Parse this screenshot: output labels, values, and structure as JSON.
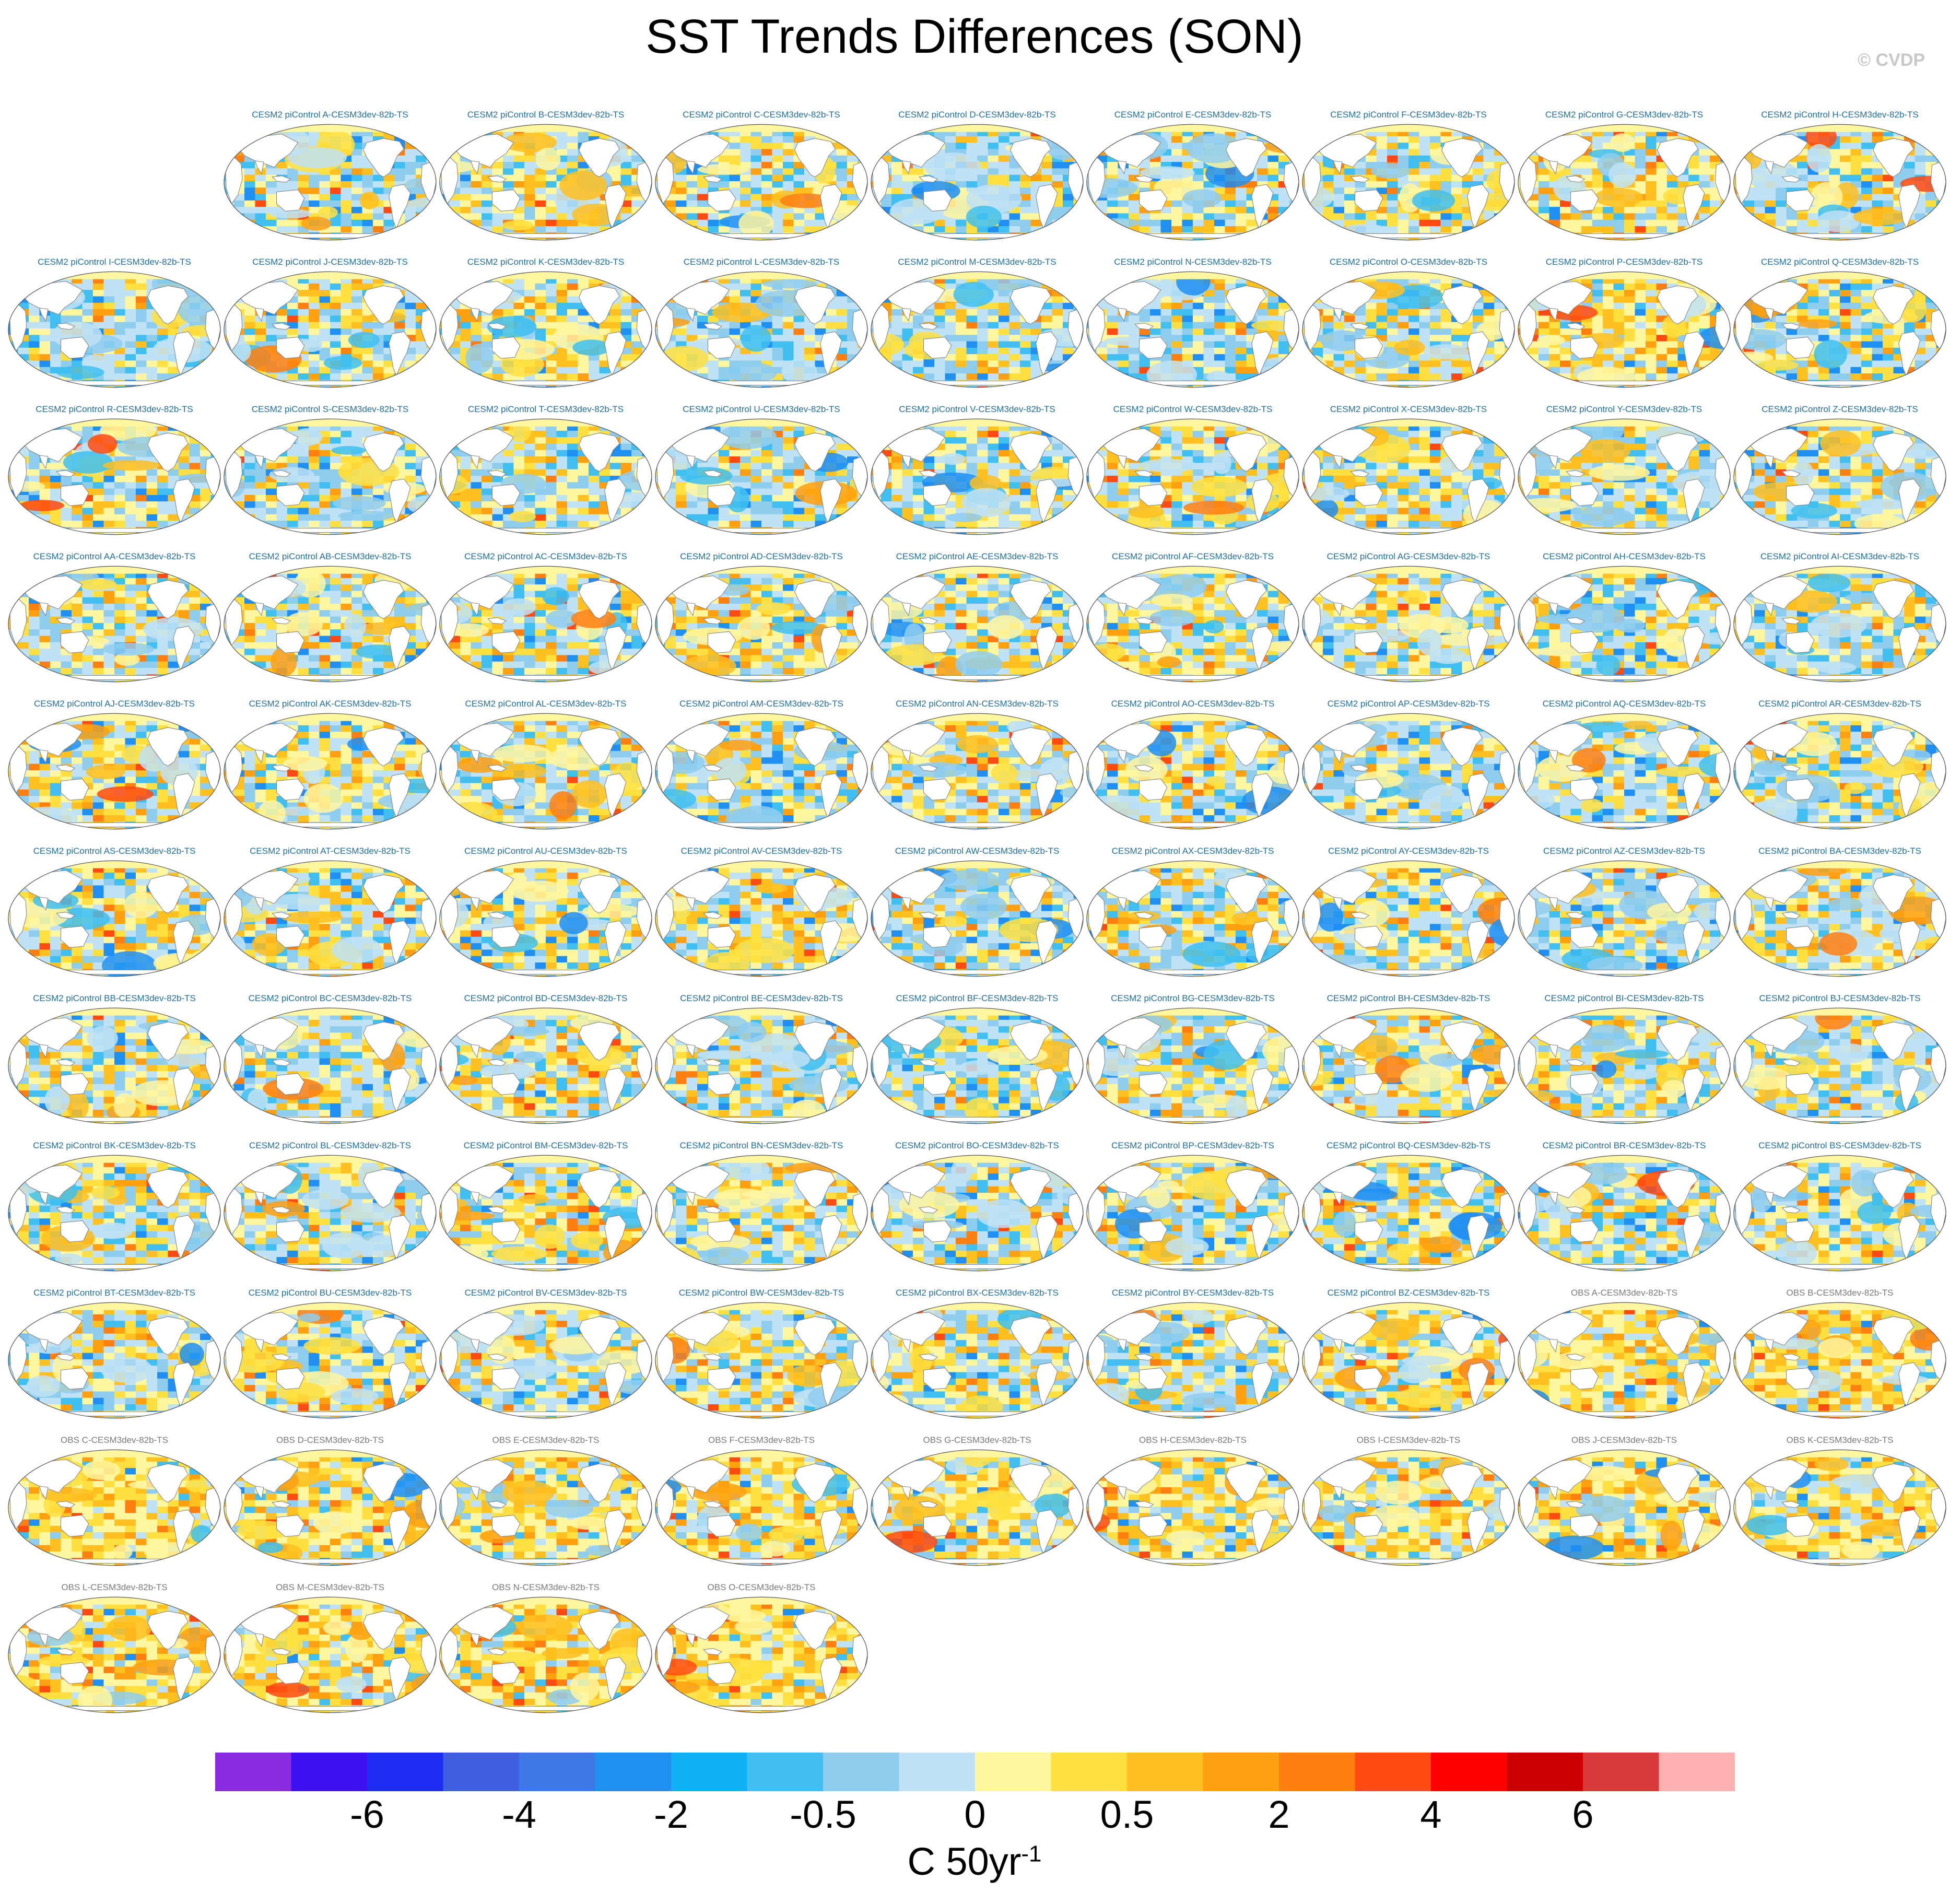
{
  "title": "SST Trends Differences (SON)",
  "watermark": "© CVDP",
  "units": {
    "base": "C 50yr",
    "exp": "-1"
  },
  "colors": {
    "land": "#ffffff",
    "coast": "#7f7f7f",
    "model_title": "#1f6fa0",
    "obs_title": "#7a7a7a"
  },
  "chart_data": {
    "type": "heatmap",
    "title": "SST Trends Differences (SON)",
    "colorbar": {
      "colors": [
        "#8a2be2",
        "#3d10f0",
        "#1f2df2",
        "#3f5fe0",
        "#3c78e6",
        "#1f8ff2",
        "#0fb0f5",
        "#40bff0",
        "#8fcdee",
        "#bfe2f5",
        "#fff6a0",
        "#ffe040",
        "#ffc020",
        "#ffa010",
        "#ff7f10",
        "#ff4a12",
        "#ff0000",
        "#cc0000",
        "#d93b3b",
        "#ffb0b0"
      ],
      "tick_labels": [
        "-6",
        "-4",
        "-2",
        "-0.5",
        "0",
        "0.5",
        "2",
        "4",
        "6"
      ],
      "tick_boundaries": [
        2,
        4,
        6,
        8,
        10,
        12,
        14,
        16,
        18
      ]
    },
    "panels": [
      {
        "label": "CESM2 piControl A-CESM3dev-82b-TS",
        "warm": 0.45,
        "type": "model"
      },
      {
        "label": "CESM2 piControl B-CESM3dev-82b-TS",
        "warm": 0.55,
        "type": "model"
      },
      {
        "label": "CESM2 piControl C-CESM3dev-82b-TS",
        "warm": 0.4,
        "type": "model"
      },
      {
        "label": "CESM2 piControl D-CESM3dev-82b-TS",
        "warm": 0.35,
        "type": "model"
      },
      {
        "label": "CESM2 piControl E-CESM3dev-82b-TS",
        "warm": 0.5,
        "type": "model"
      },
      {
        "label": "CESM2 piControl F-CESM3dev-82b-TS",
        "warm": 0.55,
        "type": "model"
      },
      {
        "label": "CESM2 piControl G-CESM3dev-82b-TS",
        "warm": 0.7,
        "type": "model"
      },
      {
        "label": "CESM2 piControl H-CESM3dev-82b-TS",
        "warm": 0.45,
        "type": "model"
      },
      {
        "label": "CESM2 piControl I-CESM3dev-82b-TS",
        "warm": 0.3,
        "type": "model"
      },
      {
        "label": "CESM2 piControl J-CESM3dev-82b-TS",
        "warm": 0.45,
        "type": "model"
      },
      {
        "label": "CESM2 piControl K-CESM3dev-82b-TS",
        "warm": 0.55,
        "type": "model"
      },
      {
        "label": "CESM2 piControl L-CESM3dev-82b-TS",
        "warm": 0.3,
        "type": "model"
      },
      {
        "label": "CESM2 piControl M-CESM3dev-82b-TS",
        "warm": 0.4,
        "type": "model"
      },
      {
        "label": "CESM2 piControl N-CESM3dev-82b-TS",
        "warm": 0.4,
        "type": "model"
      },
      {
        "label": "CESM2 piControl O-CESM3dev-82b-TS",
        "warm": 0.55,
        "type": "model"
      },
      {
        "label": "CESM2 piControl P-CESM3dev-82b-TS",
        "warm": 0.7,
        "type": "model"
      },
      {
        "label": "CESM2 piControl Q-CESM3dev-82b-TS",
        "warm": 0.45,
        "type": "model"
      },
      {
        "label": "CESM2 piControl R-CESM3dev-82b-TS",
        "warm": 0.5,
        "type": "model"
      },
      {
        "label": "CESM2 piControl S-CESM3dev-82b-TS",
        "warm": 0.45,
        "type": "model"
      },
      {
        "label": "CESM2 piControl T-CESM3dev-82b-TS",
        "warm": 0.45,
        "type": "model"
      },
      {
        "label": "CESM2 piControl U-CESM3dev-82b-TS",
        "warm": 0.35,
        "type": "model"
      },
      {
        "label": "CESM2 piControl V-CESM3dev-82b-TS",
        "warm": 0.45,
        "type": "model"
      },
      {
        "label": "CESM2 piControl W-CESM3dev-82b-TS",
        "warm": 0.5,
        "type": "model"
      },
      {
        "label": "CESM2 piControl X-CESM3dev-82b-TS",
        "warm": 0.45,
        "type": "model"
      },
      {
        "label": "CESM2 piControl Y-CESM3dev-82b-TS",
        "warm": 0.4,
        "type": "model"
      },
      {
        "label": "CESM2 piControl Z-CESM3dev-82b-TS",
        "warm": 0.4,
        "type": "model"
      },
      {
        "label": "CESM2 piControl AA-CESM3dev-82b-TS",
        "warm": 0.45,
        "type": "model"
      },
      {
        "label": "CESM2 piControl AB-CESM3dev-82b-TS",
        "warm": 0.5,
        "type": "model"
      },
      {
        "label": "CESM2 piControl AC-CESM3dev-82b-TS",
        "warm": 0.55,
        "type": "model"
      },
      {
        "label": "CESM2 piControl AD-CESM3dev-82b-TS",
        "warm": 0.6,
        "type": "model"
      },
      {
        "label": "CESM2 piControl AE-CESM3dev-82b-TS",
        "warm": 0.45,
        "type": "model"
      },
      {
        "label": "CESM2 piControl AF-CESM3dev-82b-TS",
        "warm": 0.5,
        "type": "model"
      },
      {
        "label": "CESM2 piControl AG-CESM3dev-82b-TS",
        "warm": 0.45,
        "type": "model"
      },
      {
        "label": "CESM2 piControl AH-CESM3dev-82b-TS",
        "warm": 0.45,
        "type": "model"
      },
      {
        "label": "CESM2 piControl AI-CESM3dev-82b-TS",
        "warm": 0.45,
        "type": "model"
      },
      {
        "label": "CESM2 piControl AJ-CESM3dev-82b-TS",
        "warm": 0.55,
        "type": "model"
      },
      {
        "label": "CESM2 piControl AK-CESM3dev-82b-TS",
        "warm": 0.55,
        "type": "model"
      },
      {
        "label": "CESM2 piControl AL-CESM3dev-82b-TS",
        "warm": 0.4,
        "type": "model"
      },
      {
        "label": "CESM2 piControl AM-CESM3dev-82b-TS",
        "warm": 0.4,
        "type": "model"
      },
      {
        "label": "CESM2 piControl AN-CESM3dev-82b-TS",
        "warm": 0.5,
        "type": "model"
      },
      {
        "label": "CESM2 piControl AO-CESM3dev-82b-TS",
        "warm": 0.55,
        "type": "model"
      },
      {
        "label": "CESM2 piControl AP-CESM3dev-82b-TS",
        "warm": 0.35,
        "type": "model"
      },
      {
        "label": "CESM2 piControl AQ-CESM3dev-82b-TS",
        "warm": 0.35,
        "type": "model"
      },
      {
        "label": "CESM2 piControl AR-CESM3dev-82b-TS",
        "warm": 0.45,
        "type": "model"
      },
      {
        "label": "CESM2 piControl AS-CESM3dev-82b-TS",
        "warm": 0.6,
        "type": "model"
      },
      {
        "label": "CESM2 piControl AT-CESM3dev-82b-TS",
        "warm": 0.45,
        "type": "model"
      },
      {
        "label": "CESM2 piControl AU-CESM3dev-82b-TS",
        "warm": 0.55,
        "type": "model"
      },
      {
        "label": "CESM2 piControl AV-CESM3dev-82b-TS",
        "warm": 0.55,
        "type": "model"
      },
      {
        "label": "CESM2 piControl AW-CESM3dev-82b-TS",
        "warm": 0.35,
        "type": "model"
      },
      {
        "label": "CESM2 piControl AX-CESM3dev-82b-TS",
        "warm": 0.4,
        "type": "model"
      },
      {
        "label": "CESM2 piControl AY-CESM3dev-82b-TS",
        "warm": 0.5,
        "type": "model"
      },
      {
        "label": "CESM2 piControl AZ-CESM3dev-82b-TS",
        "warm": 0.4,
        "type": "model"
      },
      {
        "label": "CESM2 piControl BA-CESM3dev-82b-TS",
        "warm": 0.5,
        "type": "model"
      },
      {
        "label": "CESM2 piControl BB-CESM3dev-82b-TS",
        "warm": 0.5,
        "type": "model"
      },
      {
        "label": "CESM2 piControl BC-CESM3dev-82b-TS",
        "warm": 0.35,
        "type": "model"
      },
      {
        "label": "CESM2 piControl BD-CESM3dev-82b-TS",
        "warm": 0.55,
        "type": "model"
      },
      {
        "label": "CESM2 piControl BE-CESM3dev-82b-TS",
        "warm": 0.5,
        "type": "model"
      },
      {
        "label": "CESM2 piControl BF-CESM3dev-82b-TS",
        "warm": 0.35,
        "type": "model"
      },
      {
        "label": "CESM2 piControl BG-CESM3dev-82b-TS",
        "warm": 0.55,
        "type": "model"
      },
      {
        "label": "CESM2 piControl BH-CESM3dev-82b-TS",
        "warm": 0.5,
        "type": "model"
      },
      {
        "label": "CESM2 piControl BI-CESM3dev-82b-TS",
        "warm": 0.45,
        "type": "model"
      },
      {
        "label": "CESM2 piControl BJ-CESM3dev-82b-TS",
        "warm": 0.4,
        "type": "model"
      },
      {
        "label": "CESM2 piControl BK-CESM3dev-82b-TS",
        "warm": 0.45,
        "type": "model"
      },
      {
        "label": "CESM2 piControl BL-CESM3dev-82b-TS",
        "warm": 0.45,
        "type": "model"
      },
      {
        "label": "CESM2 piControl BM-CESM3dev-82b-TS",
        "warm": 0.55,
        "type": "model"
      },
      {
        "label": "CESM2 piControl BN-CESM3dev-82b-TS",
        "warm": 0.55,
        "type": "model"
      },
      {
        "label": "CESM2 piControl BO-CESM3dev-82b-TS",
        "warm": 0.4,
        "type": "model"
      },
      {
        "label": "CESM2 piControl BP-CESM3dev-82b-TS",
        "warm": 0.45,
        "type": "model"
      },
      {
        "label": "CESM2 piControl BQ-CESM3dev-82b-TS",
        "warm": 0.55,
        "type": "model"
      },
      {
        "label": "CESM2 piControl BR-CESM3dev-82b-TS",
        "warm": 0.45,
        "type": "model"
      },
      {
        "label": "CESM2 piControl BS-CESM3dev-82b-TS",
        "warm": 0.45,
        "type": "model"
      },
      {
        "label": "CESM2 piControl BT-CESM3dev-82b-TS",
        "warm": 0.45,
        "type": "model"
      },
      {
        "label": "CESM2 piControl BU-CESM3dev-82b-TS",
        "warm": 0.55,
        "type": "model"
      },
      {
        "label": "CESM2 piControl BV-CESM3dev-82b-TS",
        "warm": 0.45,
        "type": "model"
      },
      {
        "label": "CESM2 piControl BW-CESM3dev-82b-TS",
        "warm": 0.5,
        "type": "model"
      },
      {
        "label": "CESM2 piControl BX-CESM3dev-82b-TS",
        "warm": 0.5,
        "type": "model"
      },
      {
        "label": "CESM2 piControl BY-CESM3dev-82b-TS",
        "warm": 0.45,
        "type": "model"
      },
      {
        "label": "CESM2 piControl BZ-CESM3dev-82b-TS",
        "warm": 0.55,
        "type": "model"
      },
      {
        "label": "OBS A-CESM3dev-82b-TS",
        "warm": 0.75,
        "type": "obs"
      },
      {
        "label": "OBS B-CESM3dev-82b-TS",
        "warm": 0.75,
        "type": "obs"
      },
      {
        "label": "OBS C-CESM3dev-82b-TS",
        "warm": 0.8,
        "type": "obs"
      },
      {
        "label": "OBS D-CESM3dev-82b-TS",
        "warm": 0.75,
        "type": "obs"
      },
      {
        "label": "OBS E-CESM3dev-82b-TS",
        "warm": 0.75,
        "type": "obs"
      },
      {
        "label": "OBS F-CESM3dev-82b-TS",
        "warm": 0.7,
        "type": "obs"
      },
      {
        "label": "OBS G-CESM3dev-82b-TS",
        "warm": 0.6,
        "type": "obs"
      },
      {
        "label": "OBS H-CESM3dev-82b-TS",
        "warm": 0.7,
        "type": "obs"
      },
      {
        "label": "OBS I-CESM3dev-82b-TS",
        "warm": 0.7,
        "type": "obs"
      },
      {
        "label": "OBS J-CESM3dev-82b-TS",
        "warm": 0.75,
        "type": "obs"
      },
      {
        "label": "OBS K-CESM3dev-82b-TS",
        "warm": 0.75,
        "type": "obs"
      },
      {
        "label": "OBS L-CESM3dev-82b-TS",
        "warm": 0.8,
        "type": "obs"
      },
      {
        "label": "OBS M-CESM3dev-82b-TS",
        "warm": 0.8,
        "type": "obs"
      },
      {
        "label": "OBS N-CESM3dev-82b-TS",
        "warm": 0.8,
        "type": "obs"
      },
      {
        "label": "OBS O-CESM3dev-82b-TS",
        "warm": 0.85,
        "type": "obs"
      }
    ]
  }
}
